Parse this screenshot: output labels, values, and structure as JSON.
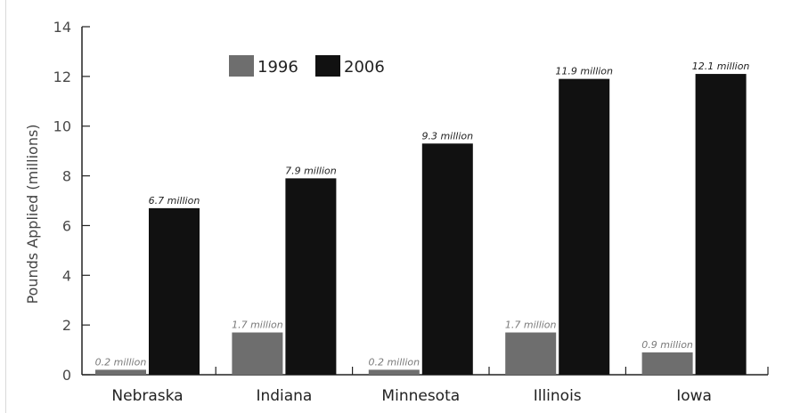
{
  "chart_data": {
    "type": "bar",
    "categories": [
      "Nebraska",
      "Indiana",
      "Minnesota",
      "Illinois",
      "Iowa"
    ],
    "series": [
      {
        "name": "1996",
        "values": [
          0.2,
          1.7,
          0.2,
          1.7,
          0.9
        ],
        "labels": [
          "0.2 million",
          "1.7 million",
          "0.2 million",
          "1.7 million",
          "0.9 million"
        ],
        "color": "#6e6e6e",
        "label_color": "#7a7a7a"
      },
      {
        "name": "2006",
        "values": [
          6.7,
          7.9,
          9.3,
          11.9,
          12.1
        ],
        "labels": [
          "6.7 million",
          "7.9 million",
          "9.3 million",
          "11.9 million",
          "12.1 million"
        ],
        "color": "#111111",
        "label_color": "#222222"
      }
    ],
    "title": "",
    "xlabel": "",
    "ylabel": "Pounds Applied (millions)",
    "ylim": [
      0,
      14
    ],
    "yticks": [
      "0",
      "2",
      "4",
      "6",
      "8",
      "10",
      "12",
      "14"
    ],
    "grid": false,
    "legend_position": "top-left"
  }
}
